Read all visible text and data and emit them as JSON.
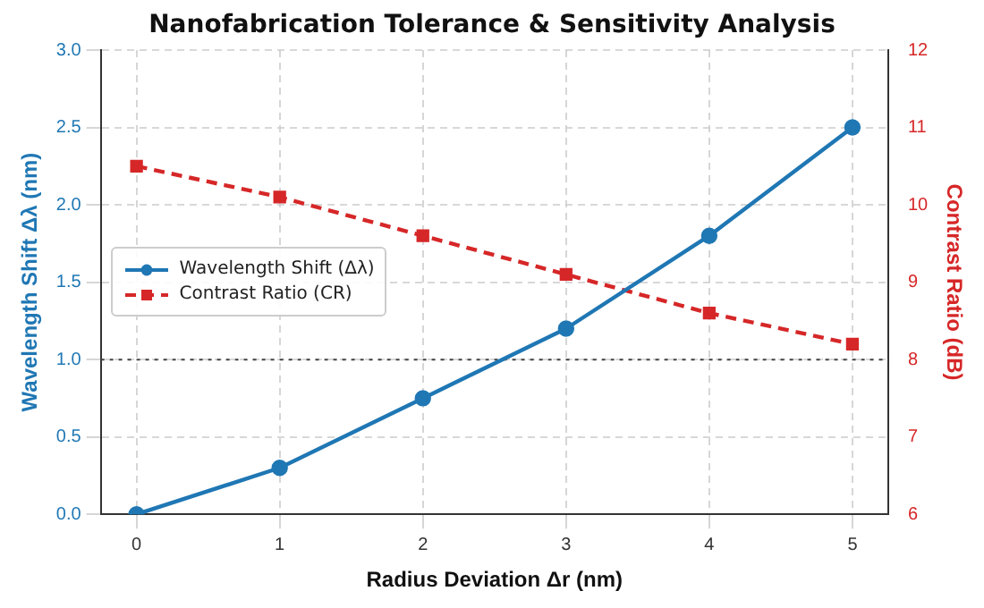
{
  "chart_data": {
    "type": "line",
    "title": "Nanofabrication Tolerance & Sensitivity Analysis",
    "xlabel": "Radius Deviation Δr (nm)",
    "ylabel": "Wavelength Shift Δλ (nm)",
    "y2label": "Contrast Ratio (dB)",
    "x": [
      0,
      1,
      2,
      3,
      4,
      5
    ],
    "series": [
      {
        "name": "Wavelength Shift (Δλ)",
        "color": "#1f77b4",
        "values": [
          0,
          0.3,
          0.75,
          1.2,
          1.8,
          2.5
        ],
        "marker": "circle",
        "line_style": "solid"
      },
      {
        "name": "Contrast Ratio (CR)",
        "color": "#d62728",
        "values": [
          10.5,
          10.1,
          9.6,
          9.1,
          8.6,
          8.2
        ],
        "axis": "y2",
        "marker": "square",
        "line_style": "dashed"
      }
    ],
    "xlim": [
      -0.25,
      5.25
    ],
    "xticks": [
      0,
      1,
      2,
      3,
      4,
      5
    ],
    "ylim": [
      0,
      3
    ],
    "yticks": [
      {
        "value": 0,
        "label": "0.0"
      },
      {
        "value": 0.5,
        "label": "0.5"
      },
      {
        "value": 1,
        "label": "1.0"
      },
      {
        "value": 1.5,
        "label": "1.5"
      },
      {
        "value": 2,
        "label": "2.0"
      },
      {
        "value": 2.5,
        "label": "2.5"
      },
      {
        "value": 3,
        "label": "3.0"
      }
    ],
    "y2lim": [
      6,
      12
    ],
    "y2ticks": [
      6,
      7,
      8,
      9,
      10,
      11,
      12
    ],
    "ref_lines": [
      {
        "axis": "y",
        "value": 1,
        "color": "#444444",
        "line_style": "dotted"
      }
    ],
    "grid": true,
    "legend": "center left"
  }
}
